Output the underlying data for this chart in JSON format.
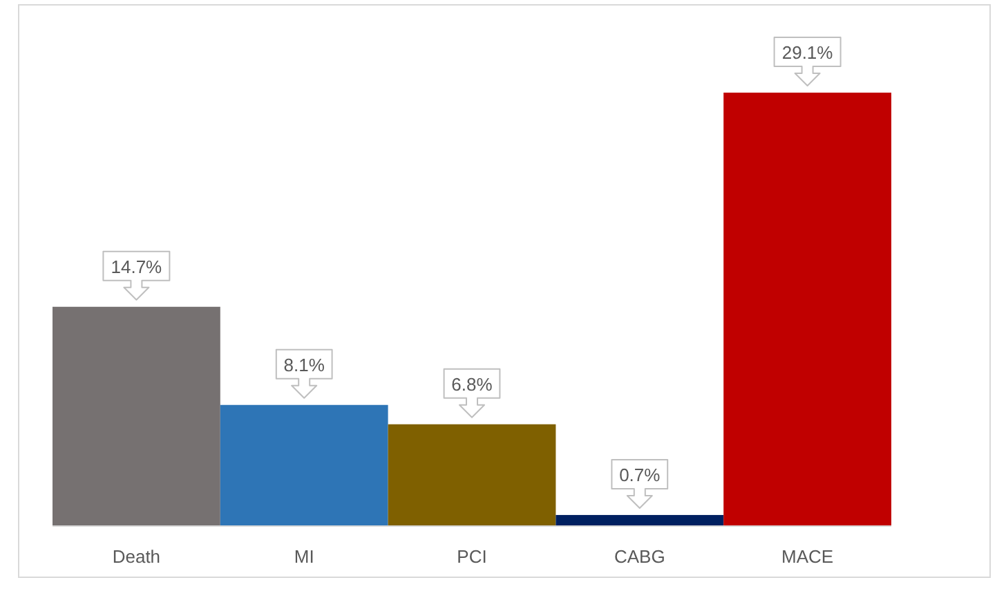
{
  "chart_data": {
    "type": "bar",
    "categories": [
      "Death",
      "MI",
      "PCI",
      "CABG",
      "MACE"
    ],
    "values": [
      14.7,
      8.1,
      6.8,
      0.7,
      29.1
    ],
    "colors": [
      "#767171",
      "#2e75b6",
      "#7f6000",
      "#002060",
      "#c00000"
    ],
    "value_labels": [
      "14.7%",
      "8.1%",
      "6.8%",
      "0.7%",
      "29.1%"
    ]
  }
}
